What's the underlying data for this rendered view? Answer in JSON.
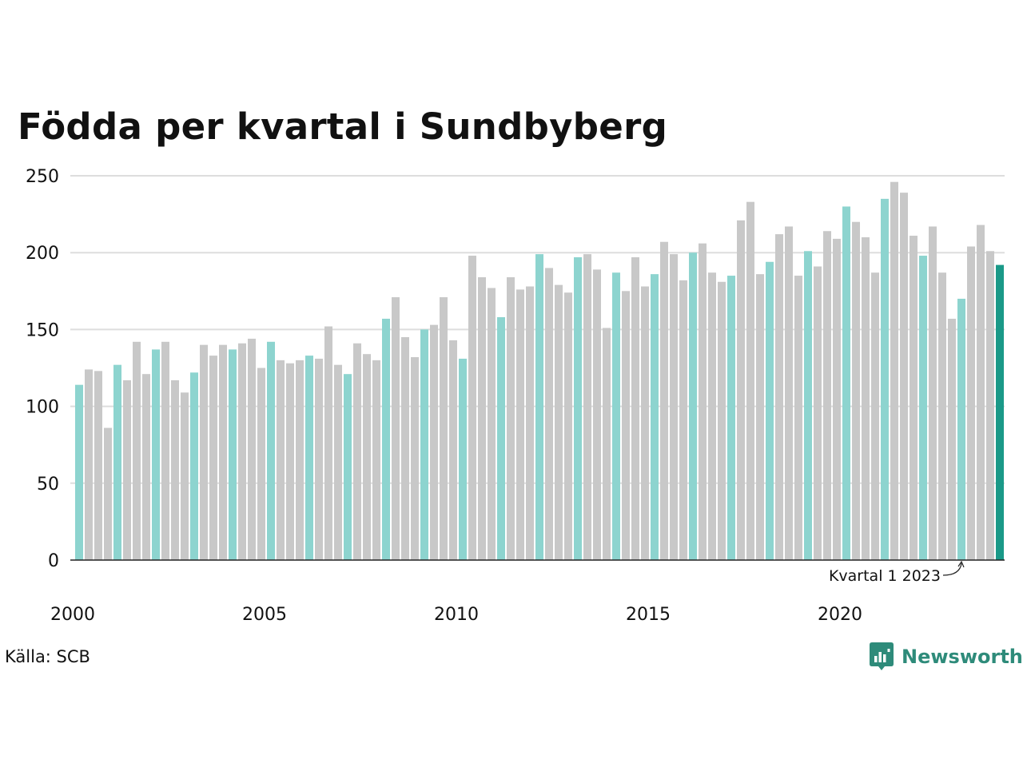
{
  "title": "Födda per kvartal i Sundbyberg",
  "source": "Källa: SCB",
  "brand": "Newsworthy",
  "colors": {
    "q1": "#8dd4cf",
    "other": "#c8c8c8",
    "latest": "#1a9988",
    "grid": "#dddddd",
    "axis": "#222222",
    "brand": "#2e8b7a"
  },
  "chart_data": {
    "type": "bar",
    "title": "Födda per kvartal i Sundbyberg",
    "xlabel": "",
    "ylabel": "",
    "ylim": [
      0,
      250
    ],
    "yticks": [
      0,
      50,
      100,
      150,
      200,
      250
    ],
    "xticks": [
      "2000",
      "2005",
      "2010",
      "2015",
      "2020"
    ],
    "grid": true,
    "start_year": 2000,
    "annotation": {
      "text": "Kvartal 1 2023",
      "year": 2023,
      "quarter": 1
    },
    "values": [
      114,
      124,
      123,
      86,
      127,
      117,
      142,
      121,
      137,
      142,
      117,
      109,
      122,
      140,
      133,
      140,
      137,
      141,
      144,
      125,
      142,
      130,
      128,
      130,
      133,
      131,
      152,
      127,
      121,
      141,
      134,
      130,
      157,
      171,
      145,
      132,
      150,
      153,
      171,
      143,
      131,
      198,
      184,
      177,
      158,
      184,
      176,
      178,
      199,
      190,
      179,
      174,
      197,
      199,
      189,
      151,
      187,
      175,
      197,
      178,
      186,
      207,
      199,
      182,
      200,
      206,
      187,
      181,
      185,
      221,
      233,
      186,
      194,
      212,
      217,
      185,
      201,
      191,
      214,
      209,
      230,
      220,
      210,
      187,
      235,
      246,
      239,
      211,
      198,
      217,
      187,
      157,
      170,
      204,
      218,
      201,
      192
    ]
  }
}
